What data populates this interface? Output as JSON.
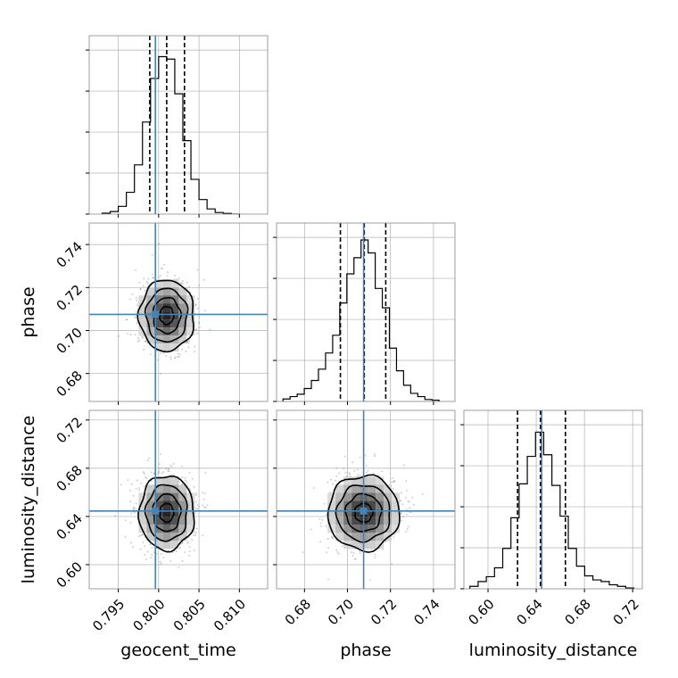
{
  "chart_data": {
    "type": "corner",
    "parameters": [
      "geocent_time",
      "phase",
      "luminosity_distance"
    ],
    "truths": [
      0.7996,
      0.7075,
      0.6445
    ],
    "truth_color": "#4682b4",
    "quantile_lines": [
      [
        0.7989,
        0.801,
        0.8032
      ],
      [
        0.6967,
        0.7078,
        0.7178
      ],
      [
        0.6245,
        0.6435,
        0.6642
      ]
    ],
    "axes": {
      "geocent_time": {
        "lim": [
          0.7914,
          0.8135
        ],
        "ticks": [
          0.795,
          0.8,
          0.805,
          0.81
        ],
        "tick_labels": [
          "0.795",
          "0.800",
          "0.805",
          "0.810"
        ]
      },
      "phase": {
        "lim": [
          0.667,
          0.75
        ],
        "ticks": [
          0.68,
          0.7,
          0.72,
          0.74
        ],
        "tick_labels": [
          "0.68",
          "0.70",
          "0.72",
          "0.74"
        ]
      },
      "luminosity_distance": {
        "lim": [
          0.58,
          0.728
        ],
        "ticks": [
          0.6,
          0.64,
          0.68,
          0.72
        ],
        "tick_labels": [
          "0.60",
          "0.64",
          "0.68",
          "0.72"
        ]
      }
    },
    "histograms": [
      {
        "param": "geocent_time",
        "bin_edges": [
          0.793,
          0.794,
          0.795,
          0.796,
          0.797,
          0.798,
          0.799,
          0.8,
          0.801,
          0.802,
          0.803,
          0.804,
          0.805,
          0.806,
          0.807,
          0.808,
          0.809,
          0.81
        ],
        "counts": [
          0.006,
          0.016,
          0.048,
          0.135,
          0.305,
          0.57,
          0.84,
          0.975,
          0.96,
          0.745,
          0.455,
          0.215,
          0.09,
          0.032,
          0.01,
          0.004,
          0.0
        ]
      },
      {
        "param": "phase",
        "bin_edges": [
          0.67,
          0.6733,
          0.6766,
          0.6799,
          0.6832,
          0.6865,
          0.6898,
          0.6931,
          0.6964,
          0.6997,
          0.703,
          0.7063,
          0.7096,
          0.7129,
          0.7162,
          0.7195,
          0.7228,
          0.7261,
          0.7294,
          0.7327,
          0.736,
          0.7393,
          0.7426
        ],
        "counts": [
          0.015,
          0.03,
          0.045,
          0.08,
          0.13,
          0.2,
          0.3,
          0.41,
          0.61,
          0.79,
          0.89,
          1.0,
          0.92,
          0.7,
          0.58,
          0.33,
          0.19,
          0.1,
          0.05,
          0.03,
          0.012,
          0.008
        ]
      },
      {
        "param": "luminosity_distance",
        "bin_edges": [
          0.585,
          0.5918,
          0.5986,
          0.6054,
          0.6122,
          0.619,
          0.6258,
          0.6326,
          0.6394,
          0.6462,
          0.653,
          0.6598,
          0.6666,
          0.6734,
          0.6802,
          0.687,
          0.6938,
          0.7006,
          0.7074,
          0.7142,
          0.721
        ],
        "counts": [
          0.015,
          0.045,
          0.075,
          0.13,
          0.25,
          0.44,
          0.65,
          0.82,
          0.97,
          0.83,
          0.64,
          0.45,
          0.25,
          0.14,
          0.08,
          0.055,
          0.045,
          0.025,
          0.015,
          0.005
        ]
      }
    ],
    "contours": [
      {
        "x": "geocent_time",
        "y": "phase",
        "center": [
          0.801,
          0.707
        ],
        "sd": [
          0.0017,
          0.0083
        ],
        "levels_sigma": [
          0.5,
          1.0,
          1.5,
          2.0
        ]
      },
      {
        "x": "geocent_time",
        "y": "luminosity_distance",
        "center": [
          0.801,
          0.643
        ],
        "sd": [
          0.0017,
          0.0155
        ],
        "levels_sigma": [
          0.5,
          1.0,
          1.5,
          2.0
        ]
      },
      {
        "x": "phase",
        "y": "luminosity_distance",
        "center": [
          0.7075,
          0.643
        ],
        "sd": [
          0.0083,
          0.0155
        ],
        "levels_sigma": [
          0.5,
          1.0,
          1.5,
          2.0
        ]
      }
    ],
    "grid": true,
    "colors": {
      "line": "#000000",
      "grid": "#b0b0b0",
      "scatter": "#7f7f7f"
    }
  }
}
